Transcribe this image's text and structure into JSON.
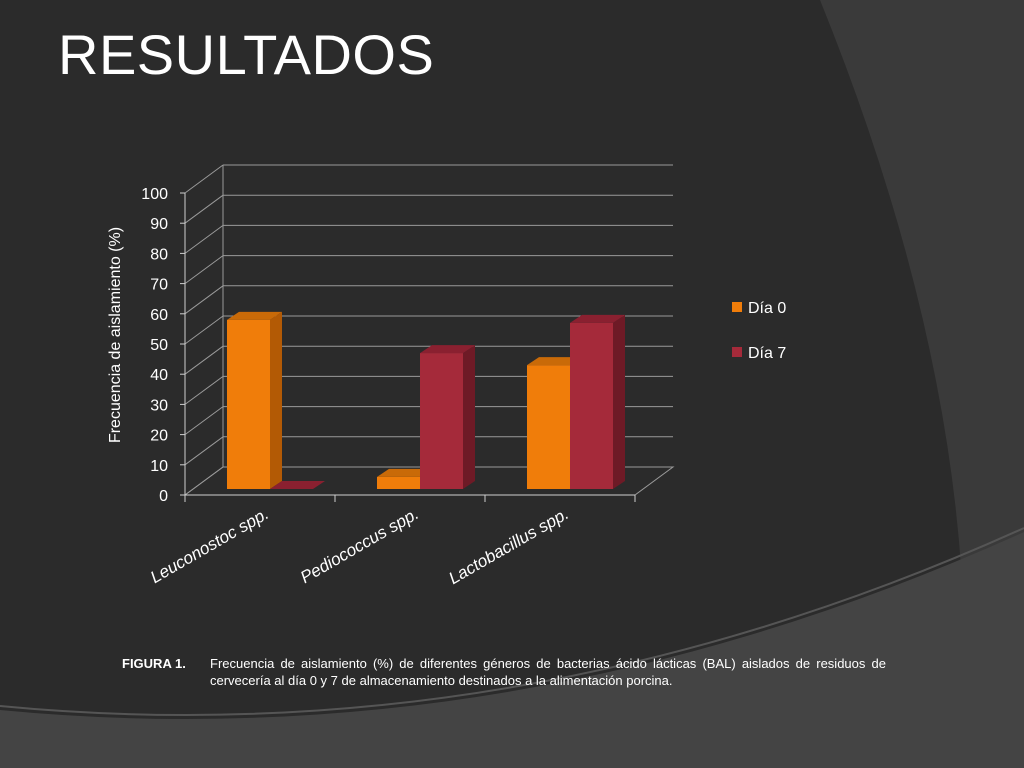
{
  "slide": {
    "title": "RESULTADOS",
    "caption_label": "FIGURA 1.",
    "caption_text": "Frecuencia de aislamiento (%) de diferentes géneros de bacterias ácido lácticas (BAL) aislados de residuos de cervecería al día 0 y 7 de almacenamiento destinados a la alimentación porcina."
  },
  "chart_data": {
    "type": "bar",
    "style": "3d-clustered",
    "ylabel": "Frecuencia de aislamiento (%)",
    "xlabel": "",
    "ylim": [
      0,
      100
    ],
    "yticks": [
      0,
      10,
      20,
      30,
      40,
      50,
      60,
      70,
      80,
      90,
      100
    ],
    "grid": true,
    "legend_position": "right",
    "categories": [
      "Leuconostoc spp.",
      "Pediococcus spp.",
      "Lactobacillus spp."
    ],
    "series": [
      {
        "name": "Día 0",
        "values": [
          56,
          4,
          41
        ],
        "color": "#f07d0a",
        "side_color": "#b35a05",
        "top_color": "#c96a08"
      },
      {
        "name": "Día 7",
        "values": [
          0,
          45,
          55
        ],
        "color": "#a52a3a",
        "side_color": "#6e1a26",
        "top_color": "#8a2030"
      }
    ]
  }
}
